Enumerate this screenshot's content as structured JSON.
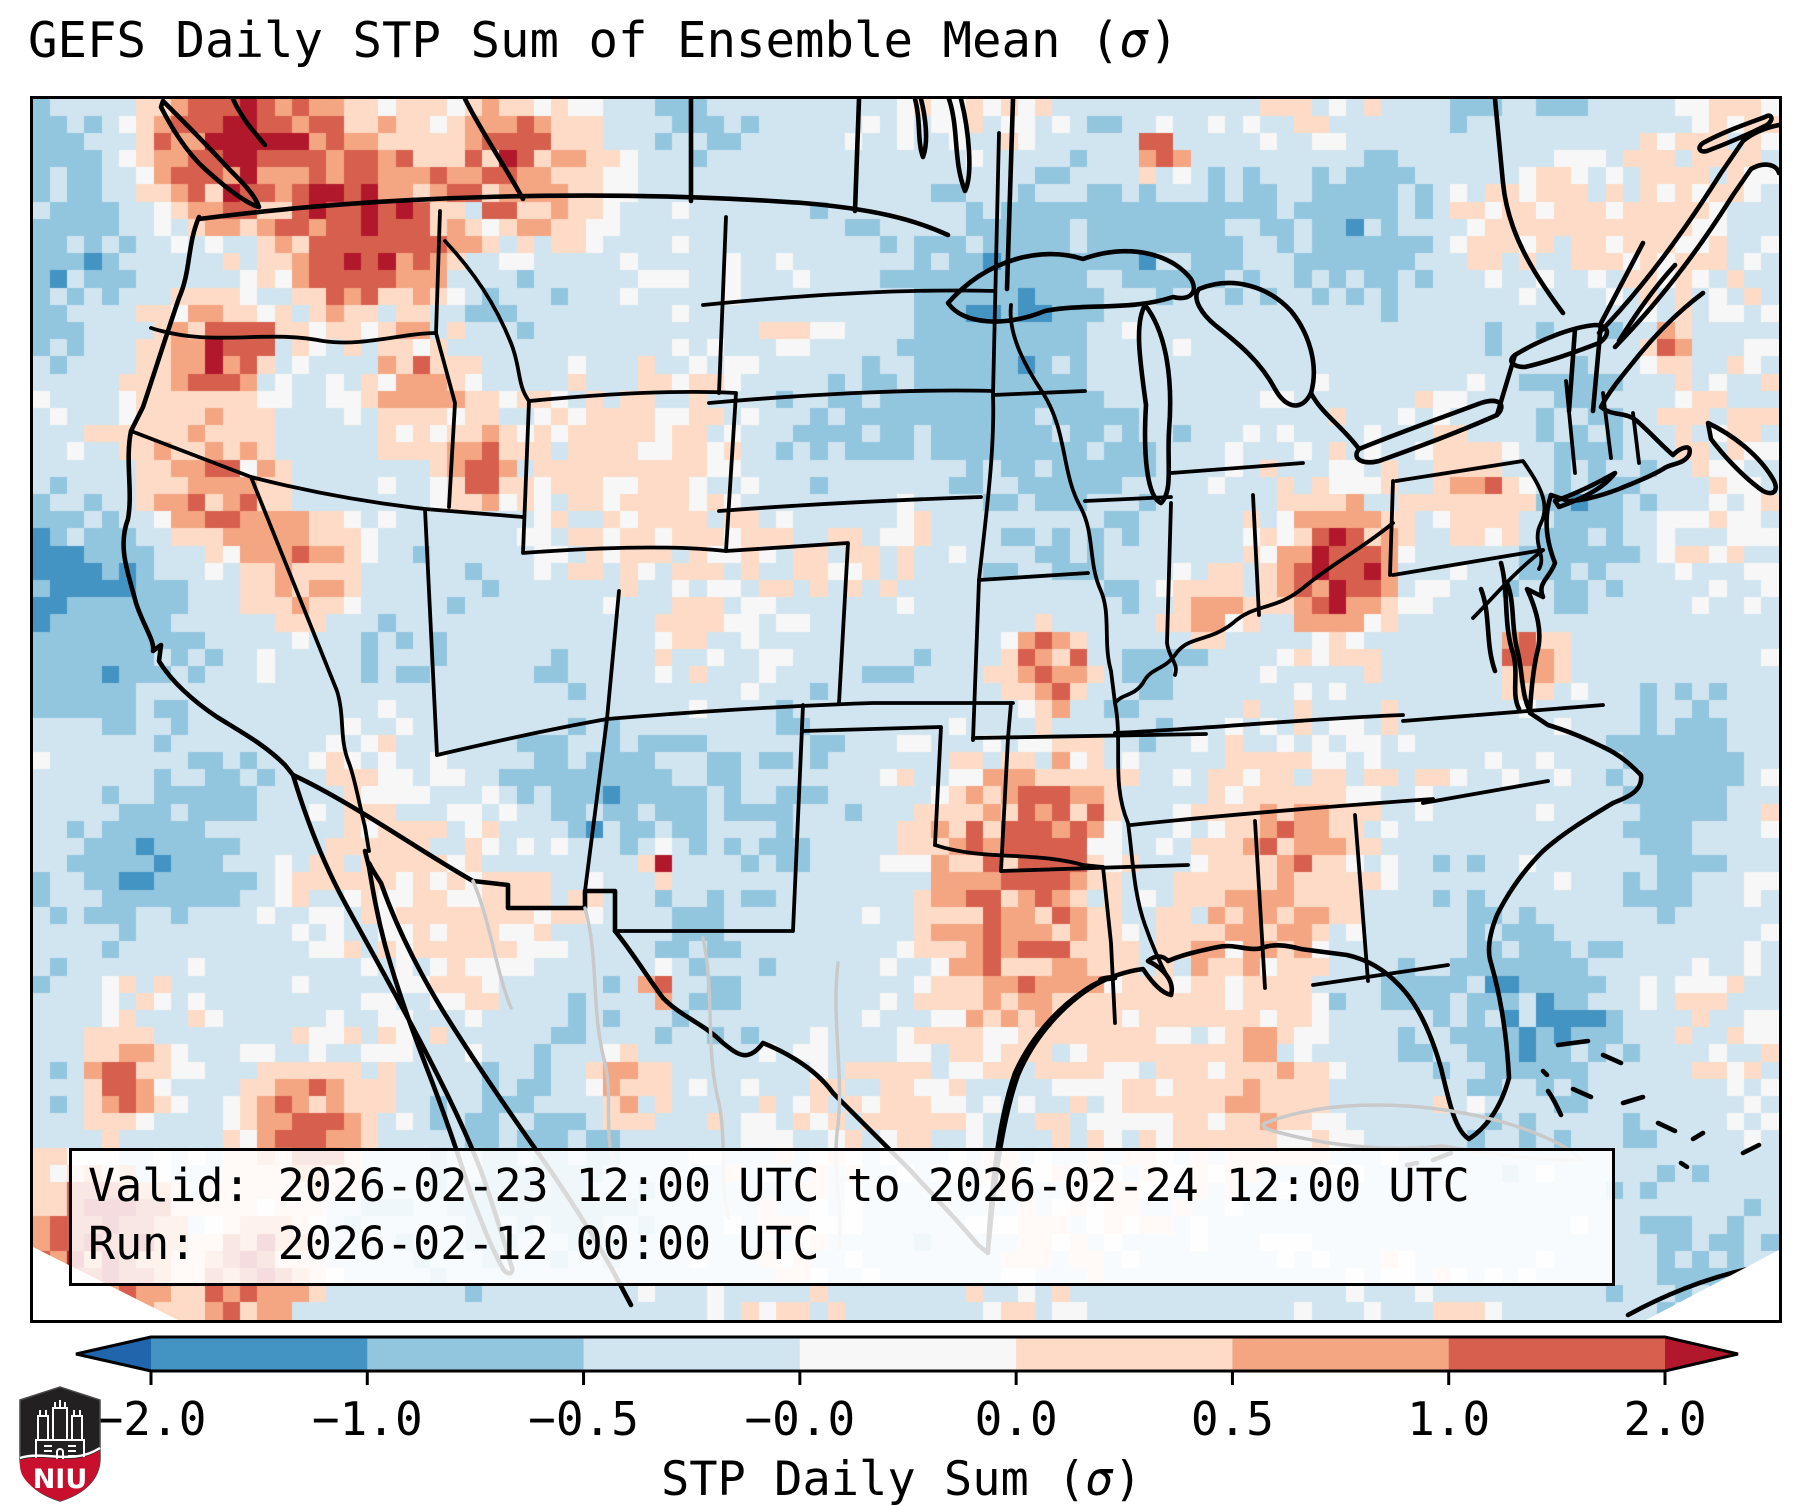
{
  "title": {
    "prefix": "GEFS Daily STP Sum of Ensemble Mean (",
    "sigma": "σ",
    "suffix": ")"
  },
  "annotation_box": {
    "lines": [
      "Valid: 2026-02-23 12:00 UTC to 2026-02-24 12:00 UTC",
      "Run:   2026-02-12 00:00 UTC"
    ]
  },
  "logo": {
    "text": "NIU",
    "shield_dark": "#232021",
    "shield_red": "#c8102e",
    "castle": "#ffffff"
  },
  "chart_data": {
    "type": "heatmap",
    "title": "GEFS Daily STP Sum of Ensemble Mean (σ)",
    "subtitle_valid": "Valid: 2026-02-23 12:00 UTC to 2026-02-24 12:00 UTC",
    "subtitle_run": "Run: 2026-02-12 00:00 UTC",
    "region": "Continental United States and surroundings (Lambert conformal view)",
    "colorbar": {
      "label_prefix": "STP Daily Sum (",
      "label_sigma": "σ",
      "label_suffix": ")",
      "orientation": "horizontal",
      "extend": "both",
      "boundaries": [
        -2.0,
        -1.0,
        -0.5,
        -0.0,
        0.0,
        0.5,
        1.0,
        2.0
      ],
      "tick_labels": [
        "−2.0",
        "−1.0",
        "−0.5",
        "−0.0",
        "0.0",
        "0.5",
        "1.0",
        "2.0"
      ],
      "segment_colors": [
        "#4393c3",
        "#92c5de",
        "#d1e5f0",
        "#f7f7f7",
        "#fddbc7",
        "#f4a582",
        "#d6604d"
      ],
      "under_color": "#2166ac",
      "over_color": "#b2182b",
      "outline_color": "#000000"
    },
    "grid": {
      "cols": 101,
      "rows": 71,
      "base_value_sigma": -0.24,
      "coarse_noise_amp": 0.45,
      "fine_noise_amp": 0.2,
      "quantize_boundaries": [
        -2,
        -1,
        -0.5,
        -0.05,
        0.05,
        0.5,
        1,
        2
      ],
      "palette": [
        "#2166ac",
        "#4393c3",
        "#92c5de",
        "#d1e5f0",
        "#f7f7f7",
        "#fddbc7",
        "#f4a582",
        "#d6604d",
        "#b2182b"
      ],
      "hotspots": [
        {
          "name": "pacific-offshore-nw",
          "x": 0.03,
          "y": 0.1,
          "amp": -0.55,
          "r": 5
        },
        {
          "name": "pacific-offshore-w",
          "x": 0.02,
          "y": 0.4,
          "amp": -0.5,
          "r": 4.5
        },
        {
          "name": "pacific-offshore-sw",
          "x": 0.06,
          "y": 0.6,
          "amp": -0.45,
          "r": 3
        },
        {
          "name": "utah-colorado-negative",
          "x": 0.315,
          "y": 0.57,
          "amp": -0.8,
          "r": 2.8
        },
        {
          "name": "minnesota-negative",
          "x": 0.56,
          "y": 0.17,
          "amp": -0.55,
          "r": 3
        },
        {
          "name": "upper-midwest-negative",
          "x": 0.5,
          "y": 0.26,
          "amp": -0.4,
          "r": 2
        },
        {
          "name": "ontario-negative",
          "x": 0.63,
          "y": 0.13,
          "amp": -0.35,
          "r": 2.5
        },
        {
          "name": "quebec-negative",
          "x": 0.77,
          "y": 0.09,
          "amp": -0.5,
          "r": 2.6
        },
        {
          "name": "northeast-atlantic-negative",
          "x": 0.88,
          "y": 0.28,
          "amp": -0.5,
          "r": 3.5
        },
        {
          "name": "southeast-atlantic-negative",
          "x": 0.85,
          "y": 0.77,
          "amp": -0.7,
          "r": 4.5
        },
        {
          "name": "mid-atlantic-offshore-negative",
          "x": 0.95,
          "y": 0.55,
          "amp": -0.45,
          "r": 2.5
        },
        {
          "name": "bc-wa-coast-positive",
          "x": 0.115,
          "y": 0.035,
          "amp": 2.3,
          "r": 3.0
        },
        {
          "name": "idaho-panhandle-positive",
          "x": 0.185,
          "y": 0.1,
          "amp": 2.0,
          "r": 3.6
        },
        {
          "name": "montana-positive",
          "x": 0.27,
          "y": 0.055,
          "amp": 1.5,
          "r": 2.4
        },
        {
          "name": "washington-coast-positive",
          "x": 0.105,
          "y": 0.2,
          "amp": 1.8,
          "r": 2.0
        },
        {
          "name": "oregon-coast-positive",
          "x": 0.1,
          "y": 0.31,
          "amp": 1.4,
          "r": 2.2
        },
        {
          "name": "norcal-positive",
          "x": 0.155,
          "y": 0.38,
          "amp": 0.9,
          "r": 2.0
        },
        {
          "name": "snake-river-positive",
          "x": 0.25,
          "y": 0.3,
          "amp": 1.7,
          "r": 1.3
        },
        {
          "name": "idaho-montana-positive",
          "x": 0.22,
          "y": 0.22,
          "amp": 0.9,
          "r": 2.2
        },
        {
          "name": "eastern-ohio-max",
          "x": 0.743,
          "y": 0.377,
          "amp": 2.8,
          "r": 2.0
        },
        {
          "name": "indiana-positive",
          "x": 0.667,
          "y": 0.41,
          "amp": 1.6,
          "r": 1.3
        },
        {
          "name": "missouri-positive",
          "x": 0.582,
          "y": 0.455,
          "amp": 1.6,
          "r": 1.6
        },
        {
          "name": "arkansas-corridor-positive",
          "x": 0.585,
          "y": 0.575,
          "amp": 1.6,
          "r": 2.4
        },
        {
          "name": "oklahoma-positive",
          "x": 0.545,
          "y": 0.62,
          "amp": 1.0,
          "r": 3.0
        },
        {
          "name": "texas-positive",
          "x": 0.565,
          "y": 0.7,
          "amp": 0.85,
          "r": 3.5
        },
        {
          "name": "mississippi-alabama-positive",
          "x": 0.7,
          "y": 0.68,
          "amp": 0.8,
          "r": 3.0
        },
        {
          "name": "tennessee-positive",
          "x": 0.72,
          "y": 0.6,
          "amp": 0.6,
          "r": 2
        },
        {
          "name": "chesapeake-virginia-positive",
          "x": 0.853,
          "y": 0.452,
          "amp": 1.9,
          "r": 1.2
        },
        {
          "name": "pennsylvania-positive",
          "x": 0.83,
          "y": 0.32,
          "amp": 0.9,
          "r": 1.8
        },
        {
          "name": "new-mexico-dot",
          "x": 0.355,
          "y": 0.62,
          "amp": 3.0,
          "r": 0.55
        },
        {
          "name": "big-bend-dot",
          "x": 0.353,
          "y": 0.72,
          "amp": 3.0,
          "r": 0.7
        },
        {
          "name": "baja-coast-positive",
          "x": 0.155,
          "y": 0.84,
          "amp": 1.5,
          "r": 2.0
        },
        {
          "name": "baja-offshore-positive",
          "x": 0.05,
          "y": 0.8,
          "amp": 1.7,
          "r": 1.6
        },
        {
          "name": "bottom-left-streak",
          "x": 0.04,
          "y": 0.93,
          "amp": 2.6,
          "r": 2.6
        },
        {
          "name": "bottom-left-streak-2",
          "x": 0.125,
          "y": 0.955,
          "amp": 2.1,
          "r": 2.0
        },
        {
          "name": "sonora-positive",
          "x": 0.33,
          "y": 0.8,
          "amp": 1.0,
          "r": 1.8
        },
        {
          "name": "ontario-red-dot",
          "x": 0.64,
          "y": 0.036,
          "amp": 2.0,
          "r": 1.0
        },
        {
          "name": "maine-coast-red-dot",
          "x": 0.935,
          "y": 0.195,
          "amp": 1.2,
          "r": 0.7
        },
        {
          "name": "gulf-positive",
          "x": 0.7,
          "y": 0.8,
          "amp": 0.5,
          "r": 3.0
        }
      ]
    }
  }
}
